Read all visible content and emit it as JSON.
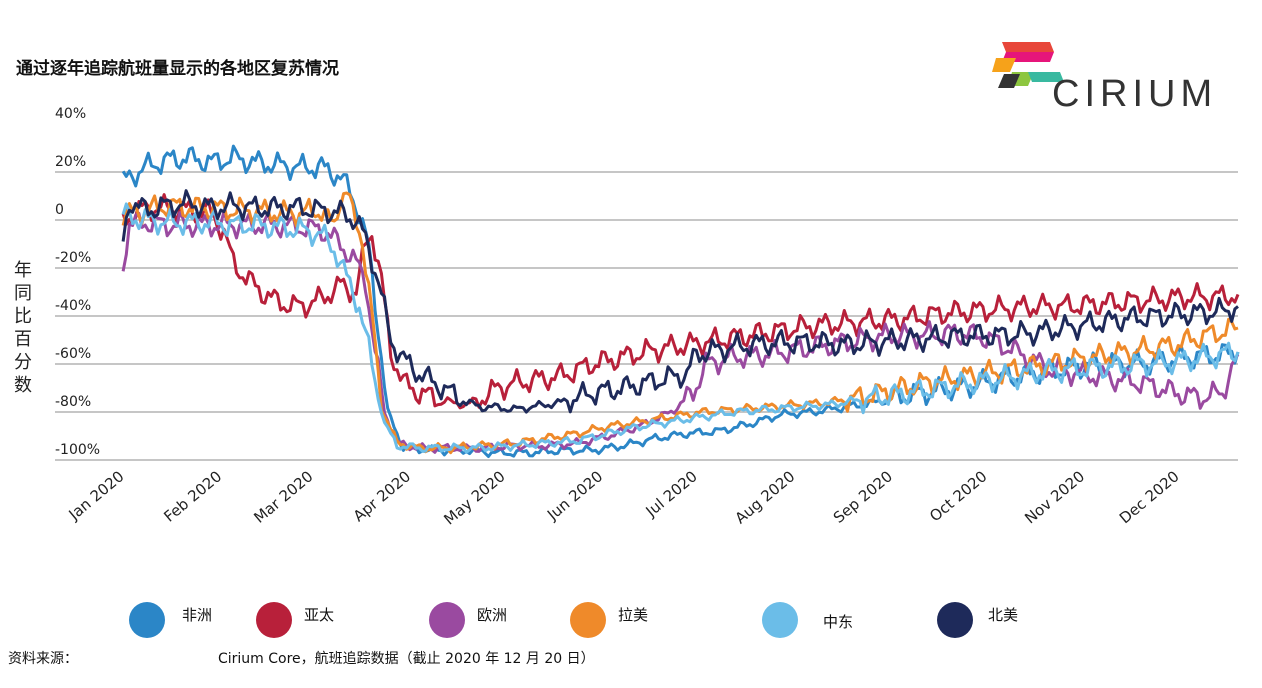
{
  "title": "通过逐年追踪航班量显示的各地区复苏情况",
  "logo": {
    "text": "CIRIUM",
    "colors": [
      "#e8463a",
      "#e6157a",
      "#f6a21a",
      "#39b9a0",
      "#8dc63f",
      "#333333"
    ]
  },
  "source": {
    "label": "资料来源：",
    "text": "Cirium Core，航班追踪数据（截止 2020 年 12 月 20 日）"
  },
  "chart_data": {
    "type": "line",
    "ylabel": "年同比百分数",
    "ylim": [
      -100,
      40
    ],
    "y_ticks": [
      "40%",
      "20%",
      "0",
      "-20%",
      "-40%",
      "-60%",
      "-80%",
      "-100%"
    ],
    "x_ticks": [
      "Jan 2020",
      "Feb 2020",
      "Mar 2020",
      "Apr 2020",
      "May 2020",
      "Jun 2020",
      "Jul 2020",
      "Aug 2020",
      "Sep 2020",
      "Oct 2020",
      "Nov 2020",
      "Dec 2020"
    ],
    "grid": true,
    "legend_position": "bottom",
    "series": [
      {
        "name": "非洲",
        "color": "#2b86c7",
        "points": [
          [
            1,
            16
          ],
          [
            8,
            22
          ],
          [
            15,
            25
          ],
          [
            22,
            26
          ],
          [
            29,
            24
          ],
          [
            36,
            26
          ],
          [
            43,
            24
          ],
          [
            50,
            23
          ],
          [
            57,
            22
          ],
          [
            64,
            22
          ],
          [
            70,
            18
          ],
          [
            73,
            12
          ],
          [
            76,
            3
          ],
          [
            79,
            -12
          ],
          [
            82,
            -45
          ],
          [
            85,
            -80
          ],
          [
            90,
            -95
          ],
          [
            100,
            -96
          ],
          [
            110,
            -96
          ],
          [
            120,
            -97
          ],
          [
            130,
            -97
          ],
          [
            140,
            -96
          ],
          [
            150,
            -96
          ],
          [
            160,
            -94
          ],
          [
            170,
            -91
          ],
          [
            180,
            -89
          ],
          [
            190,
            -88
          ],
          [
            200,
            -85
          ],
          [
            210,
            -81
          ],
          [
            220,
            -80
          ],
          [
            230,
            -78
          ],
          [
            240,
            -76
          ],
          [
            250,
            -73
          ],
          [
            260,
            -71
          ],
          [
            270,
            -69
          ],
          [
            280,
            -66
          ],
          [
            290,
            -64
          ],
          [
            300,
            -62
          ],
          [
            310,
            -60
          ],
          [
            320,
            -60
          ],
          [
            330,
            -59
          ],
          [
            340,
            -57
          ],
          [
            350,
            -56
          ],
          [
            355,
            -55
          ]
        ]
      },
      {
        "name": "亚太",
        "color": "#b8203a",
        "points": [
          [
            1,
            0
          ],
          [
            8,
            5
          ],
          [
            15,
            5
          ],
          [
            22,
            4
          ],
          [
            29,
            3
          ],
          [
            33,
            -5
          ],
          [
            36,
            -18
          ],
          [
            40,
            -24
          ],
          [
            45,
            -30
          ],
          [
            50,
            -34
          ],
          [
            55,
            -36
          ],
          [
            60,
            -35
          ],
          [
            65,
            -32
          ],
          [
            70,
            -27
          ],
          [
            75,
            -30
          ],
          [
            78,
            -10
          ],
          [
            80,
            -5
          ],
          [
            83,
            -25
          ],
          [
            86,
            -55
          ],
          [
            90,
            -68
          ],
          [
            95,
            -72
          ],
          [
            100,
            -74
          ],
          [
            105,
            -76
          ],
          [
            110,
            -77
          ],
          [
            115,
            -74
          ],
          [
            120,
            -70
          ],
          [
            125,
            -68
          ],
          [
            130,
            -67
          ],
          [
            140,
            -65
          ],
          [
            150,
            -60
          ],
          [
            160,
            -57
          ],
          [
            170,
            -54
          ],
          [
            180,
            -52
          ],
          [
            190,
            -50
          ],
          [
            200,
            -48
          ],
          [
            210,
            -46
          ],
          [
            220,
            -44
          ],
          [
            230,
            -43
          ],
          [
            240,
            -42
          ],
          [
            250,
            -41
          ],
          [
            260,
            -39
          ],
          [
            270,
            -38
          ],
          [
            280,
            -37
          ],
          [
            290,
            -36
          ],
          [
            300,
            -36
          ],
          [
            310,
            -35
          ],
          [
            320,
            -34
          ],
          [
            330,
            -33
          ],
          [
            340,
            -32
          ],
          [
            350,
            -32
          ],
          [
            355,
            -31
          ]
        ]
      },
      {
        "name": "欧洲",
        "color": "#9a4aa0",
        "points": [
          [
            1,
            -18
          ],
          [
            3,
            -2
          ],
          [
            8,
            -1
          ],
          [
            15,
            -2
          ],
          [
            22,
            -2
          ],
          [
            29,
            -2
          ],
          [
            36,
            -2
          ],
          [
            43,
            -2
          ],
          [
            50,
            -2
          ],
          [
            57,
            -3
          ],
          [
            64,
            -4
          ],
          [
            70,
            -10
          ],
          [
            75,
            -18
          ],
          [
            78,
            -25
          ],
          [
            81,
            -55
          ],
          [
            84,
            -80
          ],
          [
            88,
            -93
          ],
          [
            95,
            -95
          ],
          [
            105,
            -95
          ],
          [
            115,
            -95
          ],
          [
            125,
            -94
          ],
          [
            135,
            -94
          ],
          [
            145,
            -93
          ],
          [
            155,
            -90
          ],
          [
            165,
            -86
          ],
          [
            175,
            -80
          ],
          [
            182,
            -72
          ],
          [
            186,
            -60
          ],
          [
            195,
            -57
          ],
          [
            205,
            -56
          ],
          [
            215,
            -54
          ],
          [
            225,
            -52
          ],
          [
            235,
            -50
          ],
          [
            245,
            -48
          ],
          [
            255,
            -48
          ],
          [
            265,
            -47
          ],
          [
            275,
            -49
          ],
          [
            285,
            -55
          ],
          [
            295,
            -62
          ],
          [
            305,
            -64
          ],
          [
            315,
            -66
          ],
          [
            325,
            -68
          ],
          [
            335,
            -72
          ],
          [
            343,
            -74
          ],
          [
            350,
            -72
          ],
          [
            355,
            -56
          ]
        ]
      },
      {
        "name": "拉美",
        "color": "#ef8a2a",
        "points": [
          [
            1,
            2
          ],
          [
            8,
            4
          ],
          [
            15,
            6
          ],
          [
            22,
            5
          ],
          [
            29,
            5
          ],
          [
            36,
            4
          ],
          [
            43,
            4
          ],
          [
            50,
            3
          ],
          [
            57,
            3
          ],
          [
            64,
            4
          ],
          [
            68,
            -3
          ],
          [
            70,
            10
          ],
          [
            72,
            12
          ],
          [
            74,
            2
          ],
          [
            77,
            -8
          ],
          [
            80,
            -40
          ],
          [
            83,
            -78
          ],
          [
            88,
            -93
          ],
          [
            95,
            -95
          ],
          [
            105,
            -95
          ],
          [
            115,
            -94
          ],
          [
            125,
            -93
          ],
          [
            135,
            -91
          ],
          [
            145,
            -89
          ],
          [
            155,
            -86
          ],
          [
            165,
            -84
          ],
          [
            175,
            -82
          ],
          [
            185,
            -80
          ],
          [
            195,
            -79
          ],
          [
            205,
            -78
          ],
          [
            215,
            -77
          ],
          [
            225,
            -76
          ],
          [
            235,
            -74
          ],
          [
            245,
            -71
          ],
          [
            255,
            -68
          ],
          [
            265,
            -66
          ],
          [
            275,
            -64
          ],
          [
            285,
            -62
          ],
          [
            295,
            -60
          ],
          [
            305,
            -58
          ],
          [
            315,
            -56
          ],
          [
            325,
            -54
          ],
          [
            335,
            -52
          ],
          [
            345,
            -48
          ],
          [
            355,
            -45
          ]
        ]
      },
      {
        "name": "中东",
        "color": "#6bbde8",
        "points": [
          [
            1,
            2
          ],
          [
            8,
            0
          ],
          [
            15,
            -1
          ],
          [
            22,
            -1
          ],
          [
            29,
            -1
          ],
          [
            36,
            -2
          ],
          [
            43,
            -2
          ],
          [
            50,
            -3
          ],
          [
            57,
            -4
          ],
          [
            64,
            -6
          ],
          [
            68,
            -12
          ],
          [
            72,
            -24
          ],
          [
            76,
            -36
          ],
          [
            80,
            -60
          ],
          [
            84,
            -85
          ],
          [
            88,
            -94
          ],
          [
            95,
            -95
          ],
          [
            105,
            -95
          ],
          [
            115,
            -95
          ],
          [
            125,
            -94
          ],
          [
            135,
            -93
          ],
          [
            145,
            -92
          ],
          [
            155,
            -89
          ],
          [
            165,
            -86
          ],
          [
            175,
            -84
          ],
          [
            185,
            -82
          ],
          [
            195,
            -80
          ],
          [
            205,
            -79
          ],
          [
            215,
            -78
          ],
          [
            225,
            -77
          ],
          [
            235,
            -75
          ],
          [
            245,
            -73
          ],
          [
            255,
            -71
          ],
          [
            265,
            -69
          ],
          [
            275,
            -67
          ],
          [
            285,
            -65
          ],
          [
            295,
            -63
          ],
          [
            305,
            -62
          ],
          [
            315,
            -61
          ],
          [
            325,
            -60
          ],
          [
            335,
            -59
          ],
          [
            345,
            -57
          ],
          [
            355,
            -55
          ]
        ]
      },
      {
        "name": "北美",
        "color": "#1e2a5a",
        "points": [
          [
            1,
            -10
          ],
          [
            3,
            8
          ],
          [
            8,
            4
          ],
          [
            15,
            6
          ],
          [
            22,
            7
          ],
          [
            29,
            5
          ],
          [
            36,
            6
          ],
          [
            43,
            5
          ],
          [
            50,
            5
          ],
          [
            57,
            5
          ],
          [
            64,
            4
          ],
          [
            70,
            3
          ],
          [
            75,
            0
          ],
          [
            78,
            -8
          ],
          [
            82,
            -25
          ],
          [
            86,
            -50
          ],
          [
            90,
            -58
          ],
          [
            95,
            -64
          ],
          [
            100,
            -68
          ],
          [
            105,
            -72
          ],
          [
            110,
            -76
          ],
          [
            115,
            -78
          ],
          [
            120,
            -78
          ],
          [
            125,
            -79
          ],
          [
            130,
            -78
          ],
          [
            135,
            -77
          ],
          [
            140,
            -76
          ],
          [
            150,
            -72
          ],
          [
            160,
            -70
          ],
          [
            170,
            -67
          ],
          [
            180,
            -64
          ],
          [
            183,
            -56
          ],
          [
            190,
            -54
          ],
          [
            200,
            -52
          ],
          [
            210,
            -51
          ],
          [
            220,
            -51
          ],
          [
            230,
            -52
          ],
          [
            240,
            -51
          ],
          [
            250,
            -50
          ],
          [
            260,
            -49
          ],
          [
            270,
            -48
          ],
          [
            280,
            -48
          ],
          [
            290,
            -47
          ],
          [
            300,
            -45
          ],
          [
            310,
            -43
          ],
          [
            320,
            -41
          ],
          [
            330,
            -40
          ],
          [
            340,
            -39
          ],
          [
            350,
            -38
          ],
          [
            355,
            -36
          ]
        ]
      }
    ]
  }
}
